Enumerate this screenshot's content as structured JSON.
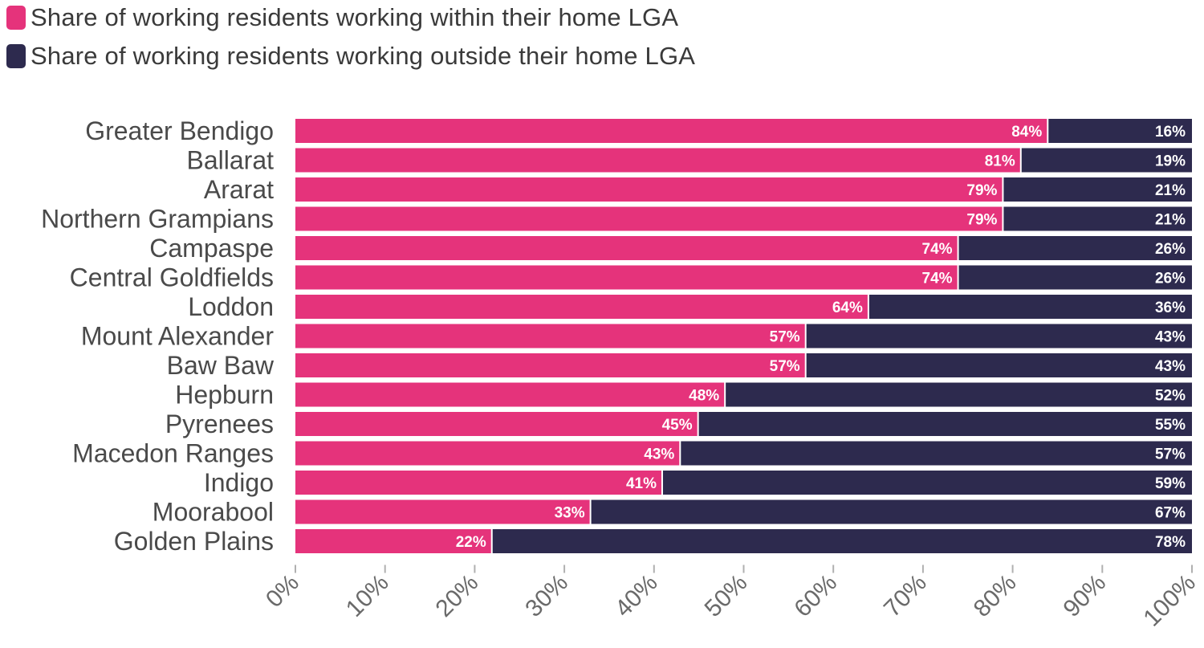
{
  "chart_data": {
    "type": "bar",
    "orientation": "horizontal",
    "stacked": true,
    "categories": [
      "Greater Bendigo",
      "Ballarat",
      "Ararat",
      "Northern Grampians",
      "Campaspe",
      "Central Goldfields",
      "Loddon",
      "Mount Alexander",
      "Baw Baw",
      "Hepburn",
      "Pyrenees",
      "Macedon Ranges",
      "Indigo",
      "Moorabool",
      "Golden Plains"
    ],
    "series": [
      {
        "name": "Share of working residents working within their home LGA",
        "color": "#e5337b",
        "values": [
          84,
          81,
          79,
          79,
          74,
          74,
          64,
          57,
          57,
          48,
          45,
          43,
          41,
          33,
          22
        ]
      },
      {
        "name": "Share of working residents working outside their home LGA",
        "color": "#2d2a4e",
        "values": [
          16,
          19,
          21,
          21,
          26,
          26,
          36,
          43,
          43,
          52,
          55,
          57,
          59,
          67,
          78
        ]
      }
    ],
    "xlim": [
      0,
      100
    ],
    "xticks": [
      "0%",
      "10%",
      "20%",
      "30%",
      "40%",
      "50%",
      "60%",
      "70%",
      "80%",
      "90%",
      "100%"
    ],
    "value_suffix": "%",
    "legend_position": "top-left",
    "grid": false
  }
}
